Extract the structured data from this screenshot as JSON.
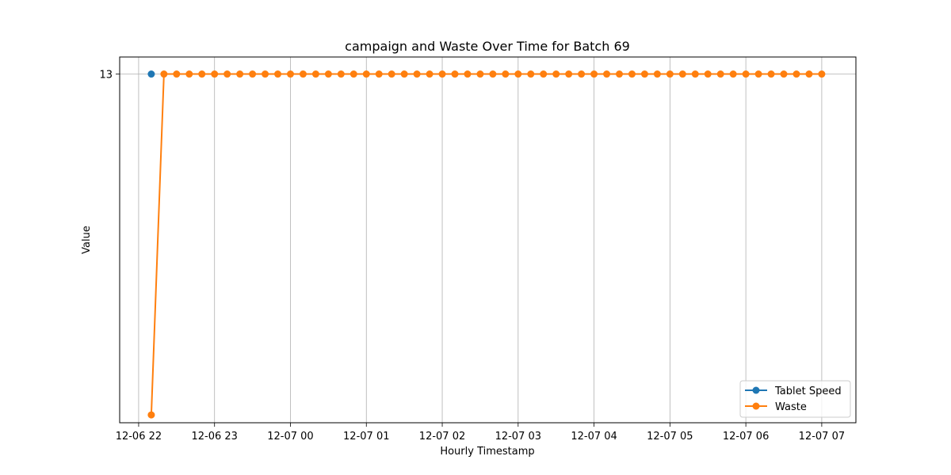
{
  "chart_data": {
    "type": "line",
    "title": "campaign and Waste Over Time for Batch 69",
    "xlabel": "Hourly Timestamp",
    "ylabel": "Value",
    "x_tick_labels": [
      "12-06 22",
      "12-06 23",
      "12-07 00",
      "12-07 01",
      "12-07 02",
      "12-07 03",
      "12-07 04",
      "12-07 05",
      "12-07 06",
      "12-07 07"
    ],
    "y_tick_labels": [
      "13"
    ],
    "y_tick_values": [
      13
    ],
    "x_ticks_hours": [
      22,
      23,
      24,
      25,
      26,
      27,
      28,
      29,
      30,
      31
    ],
    "xlim_hours": [
      21.75,
      31.45
    ],
    "ylim": [
      -0.3,
      13.65
    ],
    "grid": true,
    "legend_position": "lower-right",
    "series": [
      {
        "name": "Tablet Speed",
        "color": "#1f77b4",
        "x_hours": [
          22.1667
        ],
        "values": [
          13
        ]
      },
      {
        "name": "Waste",
        "color": "#ff7f0e",
        "x_hours": [
          22.1667,
          22.3333,
          22.5,
          22.6667,
          22.8333,
          23.0,
          23.1667,
          23.3333,
          23.5,
          23.6667,
          23.8333,
          24.0,
          24.1667,
          24.3333,
          24.5,
          24.6667,
          24.8333,
          25.0,
          25.1667,
          25.3333,
          25.5,
          25.6667,
          25.8333,
          26.0,
          26.1667,
          26.3333,
          26.5,
          26.6667,
          26.8333,
          27.0,
          27.1667,
          27.3333,
          27.5,
          27.6667,
          27.8333,
          28.0,
          28.1667,
          28.3333,
          28.5,
          28.6667,
          28.8333,
          29.0,
          29.1667,
          29.3333,
          29.5,
          29.6667,
          29.8333,
          30.0,
          30.1667,
          30.3333,
          30.5,
          30.6667,
          30.8333,
          31.0
        ],
        "values": [
          0,
          13,
          13,
          13,
          13,
          13,
          13,
          13,
          13,
          13,
          13,
          13,
          13,
          13,
          13,
          13,
          13,
          13,
          13,
          13,
          13,
          13,
          13,
          13,
          13,
          13,
          13,
          13,
          13,
          13,
          13,
          13,
          13,
          13,
          13,
          13,
          13,
          13,
          13,
          13,
          13,
          13,
          13,
          13,
          13,
          13,
          13,
          13,
          13,
          13,
          13,
          13,
          13,
          13
        ]
      }
    ]
  }
}
